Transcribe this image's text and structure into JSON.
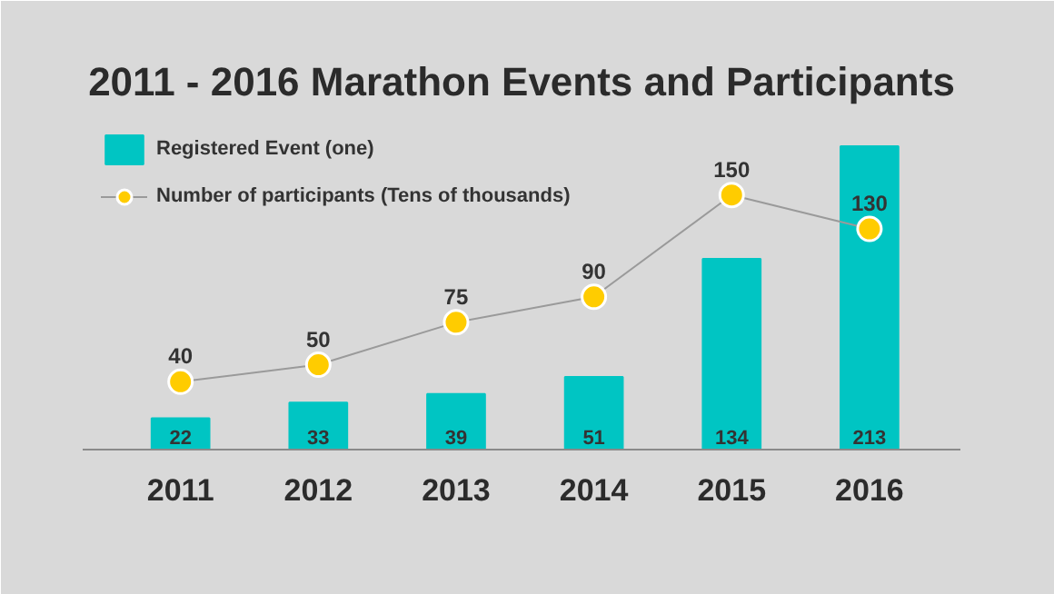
{
  "chart_data": {
    "type": "bar",
    "title": "2011 - 2016 Marathon Events and Participants",
    "categories": [
      "2011",
      "2012",
      "2013",
      "2014",
      "2015",
      "2016"
    ],
    "series": [
      {
        "name": "Registered Event (one)",
        "color": "#00c5c3",
        "values": [
          22,
          33,
          39,
          51,
          134,
          213
        ]
      },
      {
        "name": "Number of participants (Tens of thousands)",
        "type": "line",
        "axis": "y2",
        "color": "#9a9a9a",
        "marker": "circle",
        "values": [
          40,
          50,
          75,
          90,
          150,
          130
        ]
      }
    ],
    "ylim": [
      0,
      236
    ],
    "y2lim": [
      0,
      198
    ],
    "data_labels": true,
    "legend": "top left",
    "grid": false
  }
}
